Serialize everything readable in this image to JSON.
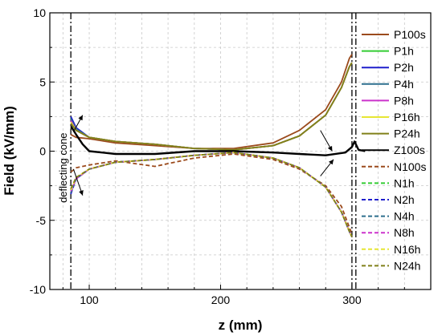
{
  "chart_data": {
    "type": "line",
    "xlabel": "z (mm)",
    "ylabel": "Field (kV/mm)",
    "xlim": [
      70,
      360
    ],
    "ylim": [
      -10,
      10
    ],
    "xticks": [
      100,
      200,
      300
    ],
    "yticks": [
      -10,
      -5,
      0,
      5,
      10
    ],
    "grid": true,
    "legend_position": "right",
    "annotations": [
      {
        "text": "deflecting cone",
        "x": 83,
        "y": -1.2,
        "orientation": "vertical"
      }
    ],
    "reference_lines": [
      {
        "x": 86,
        "style": "dash-dot"
      },
      {
        "x": 300,
        "style": "dash-dot"
      },
      {
        "x": 303,
        "style": "dash-dot"
      }
    ],
    "series": [
      {
        "name": "P100s",
        "color": "#9b4a1c",
        "dash": "solid",
        "x": [
          86,
          90,
          100,
          120,
          150,
          180,
          210,
          240,
          260,
          280,
          292,
          298,
          300
        ],
        "y": [
          1.2,
          1.0,
          0.9,
          0.6,
          0.4,
          0.2,
          0.2,
          0.6,
          1.5,
          3.0,
          5.0,
          6.7,
          7.0
        ]
      },
      {
        "name": "P1h",
        "color": "#33cc33",
        "dash": "solid",
        "x": [
          86,
          90,
          100,
          120,
          150,
          180,
          210,
          240,
          260,
          280,
          292,
          298,
          300
        ],
        "y": [
          2.4,
          1.6,
          1.0,
          0.7,
          0.5,
          0.2,
          0.1,
          0.4,
          1.1,
          2.6,
          4.6,
          6.1,
          6.4
        ]
      },
      {
        "name": "P2h",
        "color": "#1f1fcc",
        "dash": "solid",
        "x": [
          86,
          90,
          100,
          120,
          150,
          180,
          210,
          240,
          260,
          280,
          292,
          298,
          300
        ],
        "y": [
          2.5,
          1.7,
          1.0,
          0.7,
          0.5,
          0.2,
          0.1,
          0.4,
          1.1,
          2.6,
          4.6,
          6.1,
          6.4
        ]
      },
      {
        "name": "P4h",
        "color": "#2d6f8e",
        "dash": "solid",
        "x": [
          86,
          90,
          100,
          120,
          150,
          180,
          210,
          240,
          260,
          280,
          292,
          298,
          300
        ],
        "y": [
          2.3,
          1.6,
          1.0,
          0.7,
          0.5,
          0.2,
          0.1,
          0.4,
          1.1,
          2.6,
          4.6,
          6.1,
          6.4
        ]
      },
      {
        "name": "P8h",
        "color": "#cc33cc",
        "dash": "solid",
        "x": [
          86,
          90,
          100,
          120,
          150,
          180,
          210,
          240,
          260,
          280,
          292,
          298,
          300
        ],
        "y": [
          2.2,
          1.5,
          1.0,
          0.7,
          0.5,
          0.2,
          0.1,
          0.4,
          1.1,
          2.6,
          4.6,
          6.1,
          6.4
        ]
      },
      {
        "name": "P16h",
        "color": "#e6e633",
        "dash": "solid",
        "x": [
          86,
          90,
          100,
          120,
          150,
          180,
          210,
          240,
          260,
          280,
          292,
          298,
          300
        ],
        "y": [
          2.1,
          1.5,
          1.0,
          0.7,
          0.5,
          0.2,
          0.1,
          0.4,
          1.1,
          2.6,
          4.6,
          6.1,
          6.4
        ]
      },
      {
        "name": "P24h",
        "color": "#808019",
        "dash": "solid",
        "x": [
          86,
          90,
          100,
          120,
          150,
          180,
          210,
          240,
          260,
          280,
          292,
          298,
          300
        ],
        "y": [
          2.0,
          1.5,
          1.0,
          0.7,
          0.5,
          0.2,
          0.1,
          0.4,
          1.1,
          2.6,
          4.6,
          6.1,
          6.4
        ]
      },
      {
        "name": "Z100s",
        "color": "#000000",
        "dash": "solid",
        "x": [
          86,
          90,
          95,
          100,
          120,
          150,
          180,
          210,
          240,
          260,
          280,
          295,
          300,
          302,
          305,
          310
        ],
        "y": [
          1.8,
          1.2,
          0.5,
          0.0,
          -0.2,
          -0.2,
          0.0,
          0.0,
          -0.1,
          -0.2,
          -0.3,
          -0.1,
          0.3,
          0.7,
          0.1,
          0.0
        ]
      },
      {
        "name": "N100s",
        "color": "#9b4a1c",
        "dash": "dashed",
        "x": [
          86,
          90,
          100,
          120,
          150,
          180,
          210,
          240,
          260,
          280,
          292,
          298,
          300
        ],
        "y": [
          -1.5,
          -1.2,
          -1.0,
          -0.7,
          -1.1,
          -0.5,
          -0.2,
          -0.6,
          -1.3,
          -2.5,
          -4.0,
          -5.5,
          -6.0
        ]
      },
      {
        "name": "N1h",
        "color": "#33cc33",
        "dash": "dashed",
        "x": [
          86,
          90,
          100,
          120,
          150,
          180,
          210,
          240,
          260,
          280,
          292,
          298,
          300
        ],
        "y": [
          -3.0,
          -2.0,
          -1.3,
          -0.8,
          -0.6,
          -0.3,
          -0.1,
          -0.5,
          -1.2,
          -2.6,
          -4.4,
          -5.8,
          -6.2
        ]
      },
      {
        "name": "N2h",
        "color": "#1f1fcc",
        "dash": "dashed",
        "x": [
          86,
          90,
          100,
          120,
          150,
          180,
          210,
          240,
          260,
          280,
          292,
          298,
          300
        ],
        "y": [
          -3.1,
          -2.0,
          -1.3,
          -0.8,
          -0.6,
          -0.3,
          -0.1,
          -0.5,
          -1.2,
          -2.6,
          -4.4,
          -5.8,
          -6.2
        ]
      },
      {
        "name": "N4h",
        "color": "#2d6f8e",
        "dash": "dashed",
        "x": [
          86,
          90,
          100,
          120,
          150,
          180,
          210,
          240,
          260,
          280,
          292,
          298,
          300
        ],
        "y": [
          -3.0,
          -2.0,
          -1.3,
          -0.8,
          -0.6,
          -0.3,
          -0.1,
          -0.5,
          -1.2,
          -2.6,
          -4.4,
          -5.8,
          -6.2
        ]
      },
      {
        "name": "N8h",
        "color": "#cc33cc",
        "dash": "dashed",
        "x": [
          86,
          90,
          100,
          120,
          150,
          180,
          210,
          240,
          260,
          280,
          292,
          298,
          300
        ],
        "y": [
          -2.9,
          -2.0,
          -1.3,
          -0.8,
          -0.6,
          -0.3,
          -0.1,
          -0.5,
          -1.2,
          -2.6,
          -4.4,
          -5.8,
          -6.2
        ]
      },
      {
        "name": "N16h",
        "color": "#e6e633",
        "dash": "dashed",
        "x": [
          86,
          90,
          100,
          120,
          150,
          180,
          210,
          240,
          260,
          280,
          292,
          298,
          300
        ],
        "y": [
          -2.8,
          -1.9,
          -1.3,
          -0.8,
          -0.6,
          -0.3,
          -0.1,
          -0.5,
          -1.2,
          -2.6,
          -4.4,
          -5.8,
          -6.2
        ]
      },
      {
        "name": "N24h",
        "color": "#808019",
        "dash": "dashed",
        "x": [
          86,
          90,
          100,
          120,
          150,
          180,
          210,
          240,
          260,
          280,
          292,
          298,
          300
        ],
        "y": [
          -2.7,
          -1.9,
          -1.3,
          -0.8,
          -0.6,
          -0.3,
          -0.1,
          -0.5,
          -1.2,
          -2.6,
          -4.4,
          -5.8,
          -6.2
        ]
      }
    ]
  }
}
